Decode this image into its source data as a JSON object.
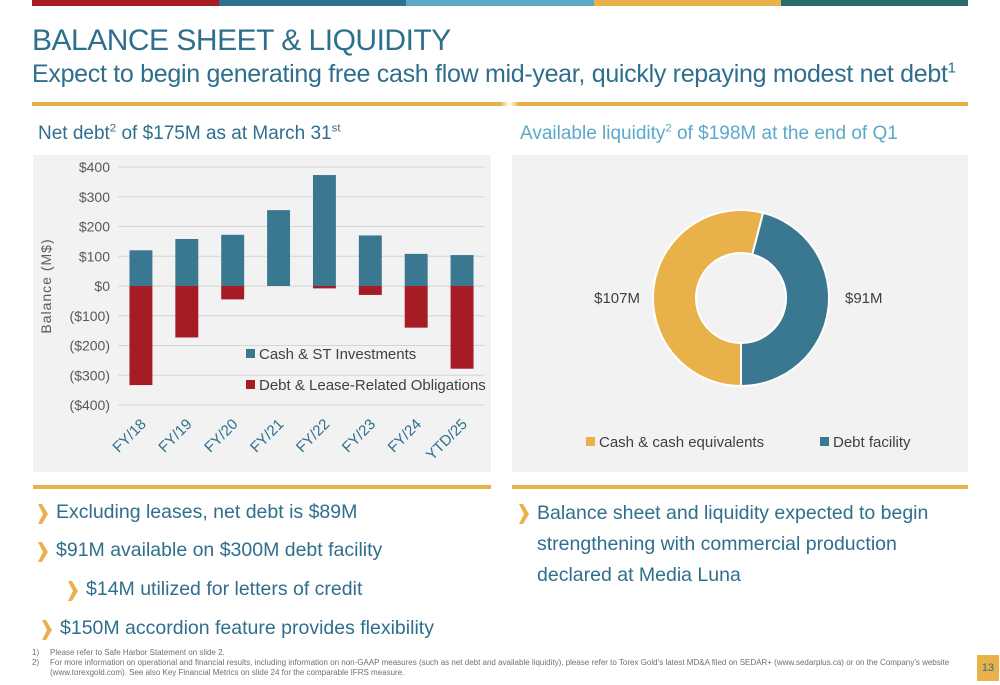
{
  "header": {
    "title": "BALANCE SHEET & LIQUIDITY",
    "subtitle": "Expect to begin generating free cash flow mid-year, quickly repaying modest net debt",
    "subtitle_sup": "1"
  },
  "colors": {
    "topbar": [
      "#a51c24",
      "#2e6f8e",
      "#5aa9c9",
      "#e9b14a",
      "#2a6b68"
    ],
    "gold": "#e9b14a",
    "teal": "#2e6f8e",
    "red": "#a51c24"
  },
  "left_panel": {
    "heading_pre": "Net debt",
    "heading_sup": "2",
    "heading_mid": " of $175M as at March 31",
    "heading_sup2": "st"
  },
  "right_panel": {
    "heading_pre": "Available liquidity",
    "heading_sup": "2",
    "heading_post": " of $198M at the end of Q1"
  },
  "chart_data": [
    {
      "type": "bar",
      "categories": [
        "FY/18",
        "FY/19",
        "FY/20",
        "FY/21",
        "FY/22",
        "FY/23",
        "FY/24",
        "YTD/25"
      ],
      "series": [
        {
          "name": "Cash & ST Investments",
          "color": "#3a7891",
          "values": [
            120,
            158,
            172,
            255,
            373,
            170,
            108,
            104
          ]
        },
        {
          "name": "Debt & Lease-Related Obligations",
          "color": "#a51c24",
          "values": [
            -333,
            -173,
            -45,
            0,
            -8,
            -30,
            -140,
            -278
          ]
        }
      ],
      "ylabel": "Balance (M$)",
      "ylim": [
        -400,
        400
      ],
      "yticks": [
        400,
        300,
        200,
        100,
        0,
        -100,
        -200,
        -300,
        -400
      ],
      "ytick_labels": [
        "$400",
        "$300",
        "$200",
        "$100",
        "$0",
        "($100)",
        "($200)",
        "($300)",
        "($400)"
      ],
      "grid": true,
      "legend": "bottom-right"
    },
    {
      "type": "pie",
      "donut": true,
      "slices": [
        {
          "name": "Cash & cash equivalents",
          "value": 107,
          "label": "$107M",
          "color": "#e9b14a"
        },
        {
          "name": "Debt facility",
          "value": 91,
          "label": "$91M",
          "color": "#3a7891"
        }
      ],
      "legend": "bottom"
    }
  ],
  "bullets_left": [
    {
      "text": "Excluding leases, net debt is $89M"
    },
    {
      "text": "$91M available on $300M debt facility"
    },
    {
      "text": "$14M utilized for letters of credit"
    },
    {
      "text": "$150M accordion feature provides flexibility"
    }
  ],
  "bullets_right": [
    {
      "text": "Balance sheet and liquidity expected to begin strengthening with commercial production declared at Media Luna"
    }
  ],
  "footnotes": [
    {
      "num": "1)",
      "text": "Please refer to Safe Harbor Statement on slide 2."
    },
    {
      "num": "2)",
      "text": "For more information on operational and financial results, including information on non-GAAP measures (such as net debt and available liquidity), please refer to Torex Gold’s latest MD&A filed on SEDAR+ (www.sedarplus.ca) or on the Company’s website (www.torexgold.com). See also Key Financial Metrics on slide 24 for the comparable IFRS measure."
    }
  ],
  "page_number": "13"
}
